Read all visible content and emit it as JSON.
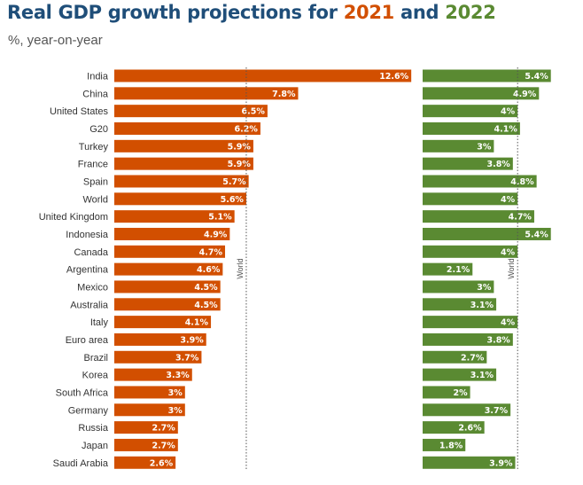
{
  "title": {
    "prefix": "Real GDP growth projections for ",
    "year1": "2021",
    "conj": " and ",
    "year2": "2022"
  },
  "subtitle": "%, year-on-year",
  "colors": {
    "title": "#1f4e79",
    "series2021": "#d24f00",
    "series2022": "#5a8a32"
  },
  "chart_data": {
    "type": "bar",
    "orientation": "horizontal",
    "categories": [
      "India",
      "China",
      "United States",
      "G20",
      "Turkey",
      "France",
      "Spain",
      "World",
      "United Kingdom",
      "Indonesia",
      "Canada",
      "Argentina",
      "Mexico",
      "Australia",
      "Italy",
      "Euro area",
      "Brazil",
      "Korea",
      "South Africa",
      "Germany",
      "Russia",
      "Japan",
      "Saudi Arabia"
    ],
    "series": [
      {
        "name": "2021",
        "values": [
          12.6,
          7.8,
          6.5,
          6.2,
          5.9,
          5.9,
          5.7,
          5.6,
          5.1,
          4.9,
          4.7,
          4.6,
          4.5,
          4.5,
          4.1,
          3.9,
          3.7,
          3.3,
          3,
          3,
          2.7,
          2.7,
          2.6
        ],
        "labels": [
          "12.6%",
          "7.8%",
          "6.5%",
          "6.2%",
          "5.9%",
          "5.9%",
          "5.7%",
          "5.6%",
          "5.1%",
          "4.9%",
          "4.7%",
          "4.6%",
          "4.5%",
          "4.5%",
          "4.1%",
          "3.9%",
          "3.7%",
          "3.3%",
          "3%",
          "3%",
          "2.7%",
          "2.7%",
          "2.6%"
        ]
      },
      {
        "name": "2022",
        "values": [
          5.4,
          4.9,
          4,
          4.1,
          3,
          3.8,
          4.8,
          4,
          4.7,
          5.4,
          4,
          2.1,
          3,
          3.1,
          4,
          3.8,
          2.7,
          3.1,
          2,
          3.7,
          2.6,
          1.8,
          3.9
        ],
        "labels": [
          "5.4%",
          "4.9%",
          "4%",
          "4.1%",
          "3%",
          "3.8%",
          "4.8%",
          "4%",
          "4.7%",
          "5.4%",
          "4%",
          "2.1%",
          "3%",
          "3.1%",
          "4%",
          "3.8%",
          "2.7%",
          "3.1%",
          "2%",
          "3.7%",
          "2.6%",
          "1.8%",
          "3.9%"
        ]
      }
    ],
    "reference_lines": [
      {
        "label": "World",
        "series": "2021",
        "value": 5.6
      },
      {
        "label": "World",
        "series": "2022",
        "value": 4
      }
    ]
  }
}
